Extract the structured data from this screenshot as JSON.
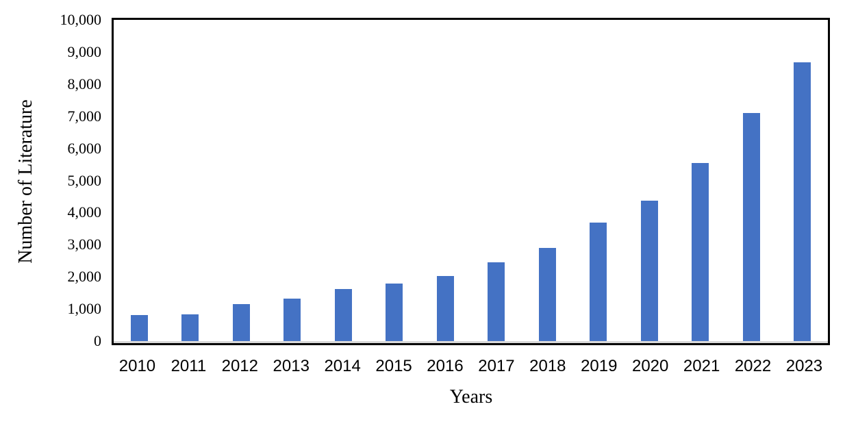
{
  "chart_data": {
    "type": "bar",
    "title": "",
    "categories": [
      "2010",
      "2011",
      "2012",
      "2013",
      "2014",
      "2015",
      "2016",
      "2017",
      "2018",
      "2019",
      "2020",
      "2021",
      "2022",
      "2023"
    ],
    "values": [
      800,
      840,
      1150,
      1330,
      1620,
      1790,
      2030,
      2460,
      2900,
      3690,
      4380,
      5550,
      7090,
      8680
    ],
    "xlabel": "Years",
    "ylabel": "Number of Literature",
    "ylim": [
      0,
      10000
    ],
    "ytick_interval": 1000,
    "ytick_labels": [
      "0",
      "1,000",
      "2,000",
      "3,000",
      "4,000",
      "5,000",
      "6,000",
      "7,000",
      "8,000",
      "9,000",
      "10,000"
    ],
    "grid": false,
    "legend_position": "none",
    "bar_color": "#4472c4",
    "plot_border_color": "#000000",
    "baseline_color": "#d9d9d9",
    "text_color": "#000000"
  }
}
